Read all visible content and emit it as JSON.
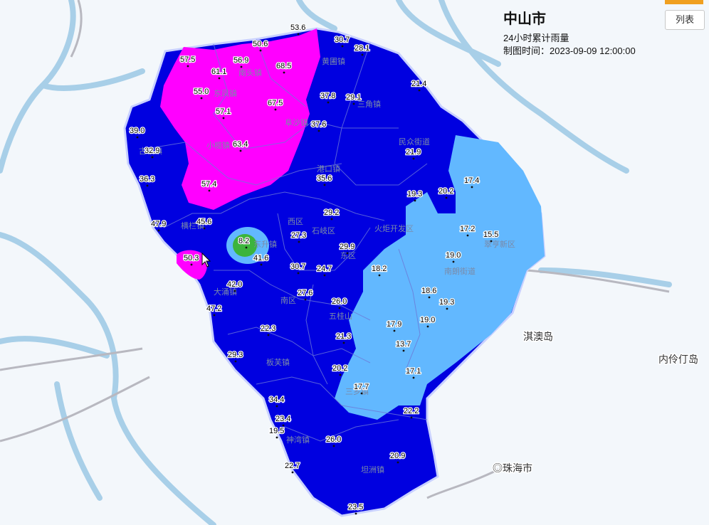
{
  "title": {
    "city": "中山市",
    "subtitle": "24小时累计雨量",
    "time_label": "制图时间：2023-09-09 12:00:00"
  },
  "list_button": "列表",
  "colors": {
    "blue": "#0000e0",
    "light_blue": "#62b8ff",
    "magenta": "#ff00ff",
    "green": "#3cb43c",
    "water": "#a8cfe8"
  },
  "places": [
    {
      "id": "qiao-island",
      "label": "淇澳岛"
    },
    {
      "id": "neilingding",
      "label": "内伶仃岛"
    },
    {
      "id": "zhuhai",
      "label": "◎珠海市"
    }
  ],
  "towns": [
    {
      "id": "huangpu",
      "label": "黄圃镇"
    },
    {
      "id": "nantou",
      "label": "南头镇"
    },
    {
      "id": "dongfeng",
      "label": "东凤镇"
    },
    {
      "id": "fusha",
      "label": "阜沙镇"
    },
    {
      "id": "sanjiao",
      "label": "三角镇"
    },
    {
      "id": "xiaolan",
      "label": "小榄镇"
    },
    {
      "id": "guzhen",
      "label": "古镇镇"
    },
    {
      "id": "minzhong",
      "label": "民众街道"
    },
    {
      "id": "gangkou",
      "label": "港口镇"
    },
    {
      "id": "henglan",
      "label": "横栏镇"
    },
    {
      "id": "xiqu",
      "label": "西区"
    },
    {
      "id": "shiqi",
      "label": "石岐区"
    },
    {
      "id": "huoju",
      "label": "火炬开发区"
    },
    {
      "id": "dongsheng",
      "label": "东升镇"
    },
    {
      "id": "dongqu",
      "label": "东区"
    },
    {
      "id": "cuiheng",
      "label": "翠亨新区"
    },
    {
      "id": "nanlang",
      "label": "南朗街道"
    },
    {
      "id": "dayong",
      "label": "大涌镇"
    },
    {
      "id": "nanqu",
      "label": "南区"
    },
    {
      "id": "wuguishan",
      "label": "五桂山"
    },
    {
      "id": "banfu",
      "label": "板芙镇"
    },
    {
      "id": "sanxiang",
      "label": "三乡镇"
    },
    {
      "id": "shenwan",
      "label": "神湾镇"
    },
    {
      "id": "tanzhou",
      "label": "坦洲镇"
    }
  ],
  "stations": [
    {
      "id": "s1",
      "value": "53.6"
    },
    {
      "id": "s2",
      "value": "30.7"
    },
    {
      "id": "s3",
      "value": "50.6"
    },
    {
      "id": "s4",
      "value": "28.1"
    },
    {
      "id": "s5",
      "value": "57.5"
    },
    {
      "id": "s6",
      "value": "56.9"
    },
    {
      "id": "s7",
      "value": "68.5"
    },
    {
      "id": "s8",
      "value": "61.1"
    },
    {
      "id": "s9",
      "value": "21.4"
    },
    {
      "id": "s10",
      "value": "55.0"
    },
    {
      "id": "s11",
      "value": "37.8"
    },
    {
      "id": "s12",
      "value": "29.1"
    },
    {
      "id": "s13",
      "value": "67.5"
    },
    {
      "id": "s14",
      "value": "57.1"
    },
    {
      "id": "s15",
      "value": "37.6"
    },
    {
      "id": "s16",
      "value": "39.0"
    },
    {
      "id": "s17",
      "value": "32.9"
    },
    {
      "id": "s18",
      "value": "63.4"
    },
    {
      "id": "s19",
      "value": "21.9"
    },
    {
      "id": "s20",
      "value": "36.3"
    },
    {
      "id": "s21",
      "value": "35.6"
    },
    {
      "id": "s22",
      "value": "17.4"
    },
    {
      "id": "s23",
      "value": "57.4"
    },
    {
      "id": "s24",
      "value": "19.3"
    },
    {
      "id": "s25",
      "value": "20.2"
    },
    {
      "id": "s26",
      "value": "29.2"
    },
    {
      "id": "s27",
      "value": "47.9"
    },
    {
      "id": "s28",
      "value": "45.6"
    },
    {
      "id": "s29",
      "value": "17.2"
    },
    {
      "id": "s30",
      "value": "15.5"
    },
    {
      "id": "s31",
      "value": "27.3"
    },
    {
      "id": "s32",
      "value": "8.2"
    },
    {
      "id": "s33",
      "value": "29.9"
    },
    {
      "id": "s34",
      "value": "19.0"
    },
    {
      "id": "s35",
      "value": "50.3"
    },
    {
      "id": "s36",
      "value": "41.6"
    },
    {
      "id": "s37",
      "value": "30.7"
    },
    {
      "id": "s38",
      "value": "24.7"
    },
    {
      "id": "s39",
      "value": "18.2"
    },
    {
      "id": "s40",
      "value": "42.0"
    },
    {
      "id": "s41",
      "value": "18.6"
    },
    {
      "id": "s42",
      "value": "27.6"
    },
    {
      "id": "s43",
      "value": "19.3"
    },
    {
      "id": "s44",
      "value": "26.0"
    },
    {
      "id": "s45",
      "value": "47.2"
    },
    {
      "id": "s46",
      "value": "19.0"
    },
    {
      "id": "s47",
      "value": "17.9"
    },
    {
      "id": "s48",
      "value": "22.3"
    },
    {
      "id": "s49",
      "value": "21.3"
    },
    {
      "id": "s50",
      "value": "13.7"
    },
    {
      "id": "s51",
      "value": "29.3"
    },
    {
      "id": "s52",
      "value": "20.2"
    },
    {
      "id": "s53",
      "value": "17.1"
    },
    {
      "id": "s54",
      "value": "17.7"
    },
    {
      "id": "s55",
      "value": "34.4"
    },
    {
      "id": "s56",
      "value": "22.2"
    },
    {
      "id": "s57",
      "value": "23.4"
    },
    {
      "id": "s58",
      "value": "19.5"
    },
    {
      "id": "s59",
      "value": "26.0"
    },
    {
      "id": "s60",
      "value": "20.9"
    },
    {
      "id": "s61",
      "value": "22.7"
    },
    {
      "id": "s62",
      "value": "23.5"
    }
  ]
}
